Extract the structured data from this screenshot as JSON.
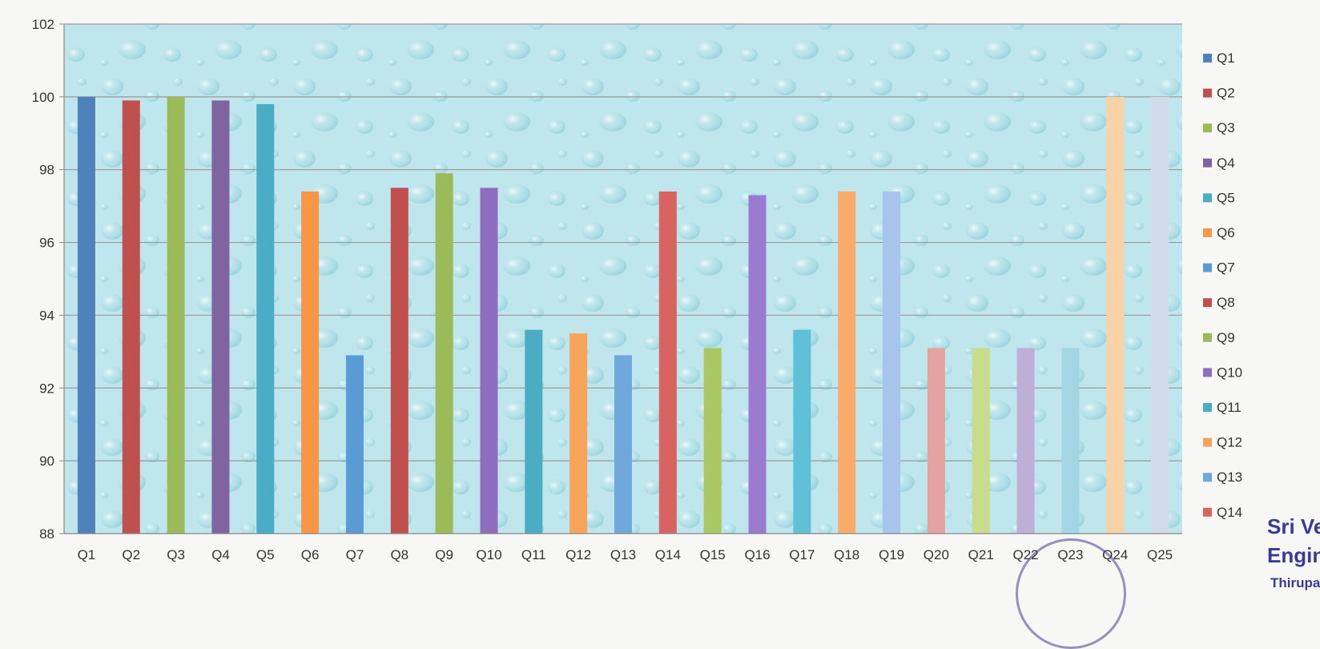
{
  "chart_data": {
    "type": "bar",
    "categories": [
      "Q1",
      "Q2",
      "Q3",
      "Q4",
      "Q5",
      "Q6",
      "Q7",
      "Q8",
      "Q9",
      "Q10",
      "Q11",
      "Q12",
      "Q13",
      "Q14",
      "Q15",
      "Q16",
      "Q17",
      "Q18",
      "Q19",
      "Q20",
      "Q21",
      "Q22",
      "Q23",
      "Q24",
      "Q25"
    ],
    "values": [
      100.0,
      99.9,
      100.0,
      99.9,
      99.8,
      97.4,
      92.9,
      97.5,
      97.9,
      97.5,
      93.6,
      93.5,
      92.9,
      97.4,
      93.1,
      97.3,
      93.6,
      97.4,
      97.4,
      93.1,
      93.1,
      93.1,
      93.1,
      100.0,
      100.0
    ],
    "colors": [
      "#4f81bd",
      "#c0504d",
      "#9bbb59",
      "#8064a2",
      "#4bacc6",
      "#f79646",
      "#5b9bd5",
      "#c0504d",
      "#9bbb59",
      "#8e6cc0",
      "#4bacc6",
      "#f8a35a",
      "#6fa8dc",
      "#d9645f",
      "#a9c862",
      "#9a7bd0",
      "#5ec1d8",
      "#f9ac6a",
      "#a6c4ec",
      "#e5a3a0",
      "#c9dc8e",
      "#bfaed6",
      "#a4d6e2",
      "#fbd1a8",
      "#d2dbea"
    ],
    "legend": [
      "Q1",
      "Q2",
      "Q3",
      "Q4",
      "Q5",
      "Q6",
      "Q7",
      "Q8",
      "Q9",
      "Q10",
      "Q11",
      "Q12",
      "Q13",
      "Q14"
    ],
    "yticks": [
      "88",
      "90",
      "92",
      "94",
      "96",
      "98",
      "100",
      "102"
    ],
    "ylim": [
      88,
      102
    ],
    "grid": true,
    "legend_position": "right",
    "plot_background": "#bfe6ec"
  },
  "watermark": {
    "line1": "Sri Ve",
    "line2": "Engin",
    "line3": "Thirupa"
  }
}
